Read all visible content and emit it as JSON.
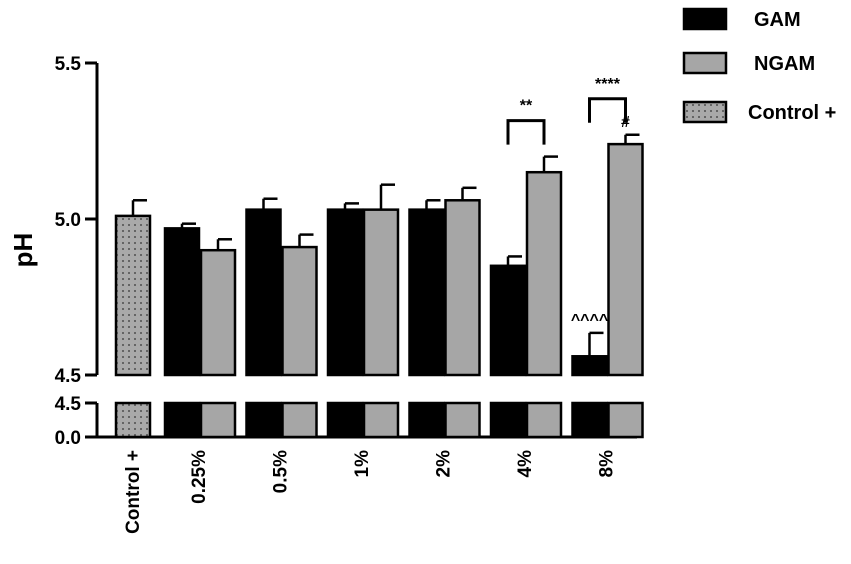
{
  "chart_data": {
    "type": "bar",
    "title": "",
    "xlabel": "",
    "ylabel": "pH",
    "ylim": [
      0.0,
      5.5
    ],
    "axis_break": true,
    "yticks_lower": [
      "0.0",
      "4.5"
    ],
    "yticks_upper": [
      "4.5",
      "5.0",
      "5.5"
    ],
    "legend_position": "top-right",
    "categories": [
      "Control  +",
      "0.25%",
      "0.5%",
      "1%",
      "2%",
      "4%",
      "8%"
    ],
    "series": [
      {
        "name": "Control +",
        "color": "#a9a9a9",
        "pattern": "dots",
        "values": [
          5.01,
          null,
          null,
          null,
          null,
          null,
          null
        ],
        "errors": [
          0.05,
          null,
          null,
          null,
          null,
          null,
          null
        ]
      },
      {
        "name": "GAM",
        "color": "#000000",
        "values": [
          null,
          4.97,
          5.03,
          5.03,
          5.03,
          4.85,
          4.56
        ],
        "errors": [
          null,
          0.015,
          0.035,
          0.02,
          0.03,
          0.03,
          0.075
        ]
      },
      {
        "name": "NGAM",
        "color": "#a6a6a6",
        "values": [
          null,
          4.9,
          4.91,
          5.03,
          5.06,
          5.15,
          5.24
        ],
        "errors": [
          null,
          0.035,
          0.04,
          0.08,
          0.04,
          0.05,
          0.03
        ]
      }
    ],
    "annotations": [
      {
        "category": "4%",
        "text": "**",
        "type": "bracket"
      },
      {
        "category": "8%",
        "text": "****",
        "type": "bracket"
      },
      {
        "category": "8%",
        "series": "NGAM",
        "text": "#"
      },
      {
        "category": "8%",
        "series": "GAM",
        "text": "^^^^"
      }
    ]
  }
}
